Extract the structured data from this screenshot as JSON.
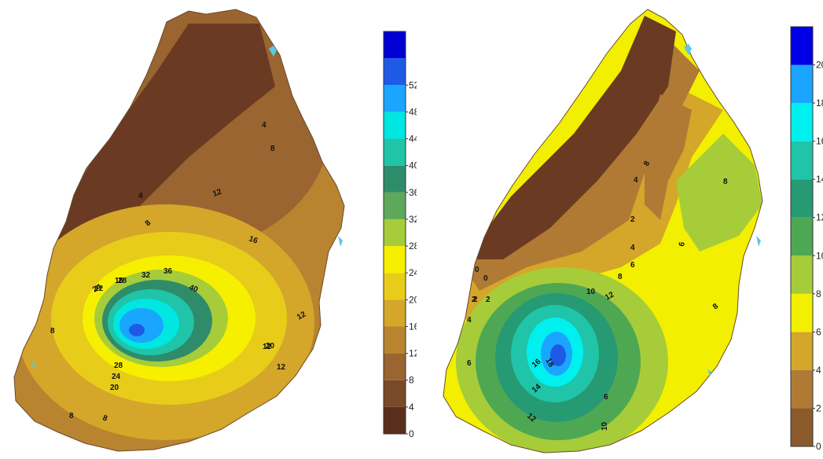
{
  "maps": [
    {
      "legend": {
        "ticks": [
          "0",
          "4",
          "8",
          "12",
          "16",
          "20",
          "24",
          "28",
          "32",
          "36",
          "40",
          "44",
          "48",
          "52"
        ],
        "colors": [
          "#5a2e1c",
          "#7a4a28",
          "#9a6530",
          "#b9842f",
          "#d4a62a",
          "#e8cc1a",
          "#f6f000",
          "#a6cc3a",
          "#5da85a",
          "#2e8c6a",
          "#20c4a8",
          "#00e6e0",
          "#1aa6ff",
          "#1f5ae6",
          "#0000d2"
        ]
      },
      "contour_labels": [
        "4",
        "8",
        "12",
        "16",
        "20",
        "24",
        "28",
        "32",
        "36",
        "40",
        "12",
        "12",
        "12",
        "8",
        "8",
        "4",
        "8",
        "16",
        "20",
        "24",
        "28",
        "12",
        "8"
      ]
    },
    {
      "legend": {
        "ticks": [
          "0",
          "2",
          "4",
          "6",
          "8",
          "10",
          "12",
          "14",
          "16",
          "18",
          "20"
        ],
        "colors": [
          "#8a5a2a",
          "#b07a35",
          "#d4a62a",
          "#f2ef00",
          "#a6cc3a",
          "#4ea853",
          "#269a72",
          "#20c4a8",
          "#00f0f0",
          "#1aa6ff",
          "#0000e6"
        ]
      },
      "contour_labels": [
        "0",
        "0",
        "2",
        "2",
        "2",
        "4",
        "4",
        "6",
        "6",
        "6",
        "8",
        "8",
        "8",
        "10",
        "12",
        "14",
        "16",
        "18",
        "10",
        "12",
        "8",
        "6",
        "4",
        "2"
      ]
    }
  ]
}
